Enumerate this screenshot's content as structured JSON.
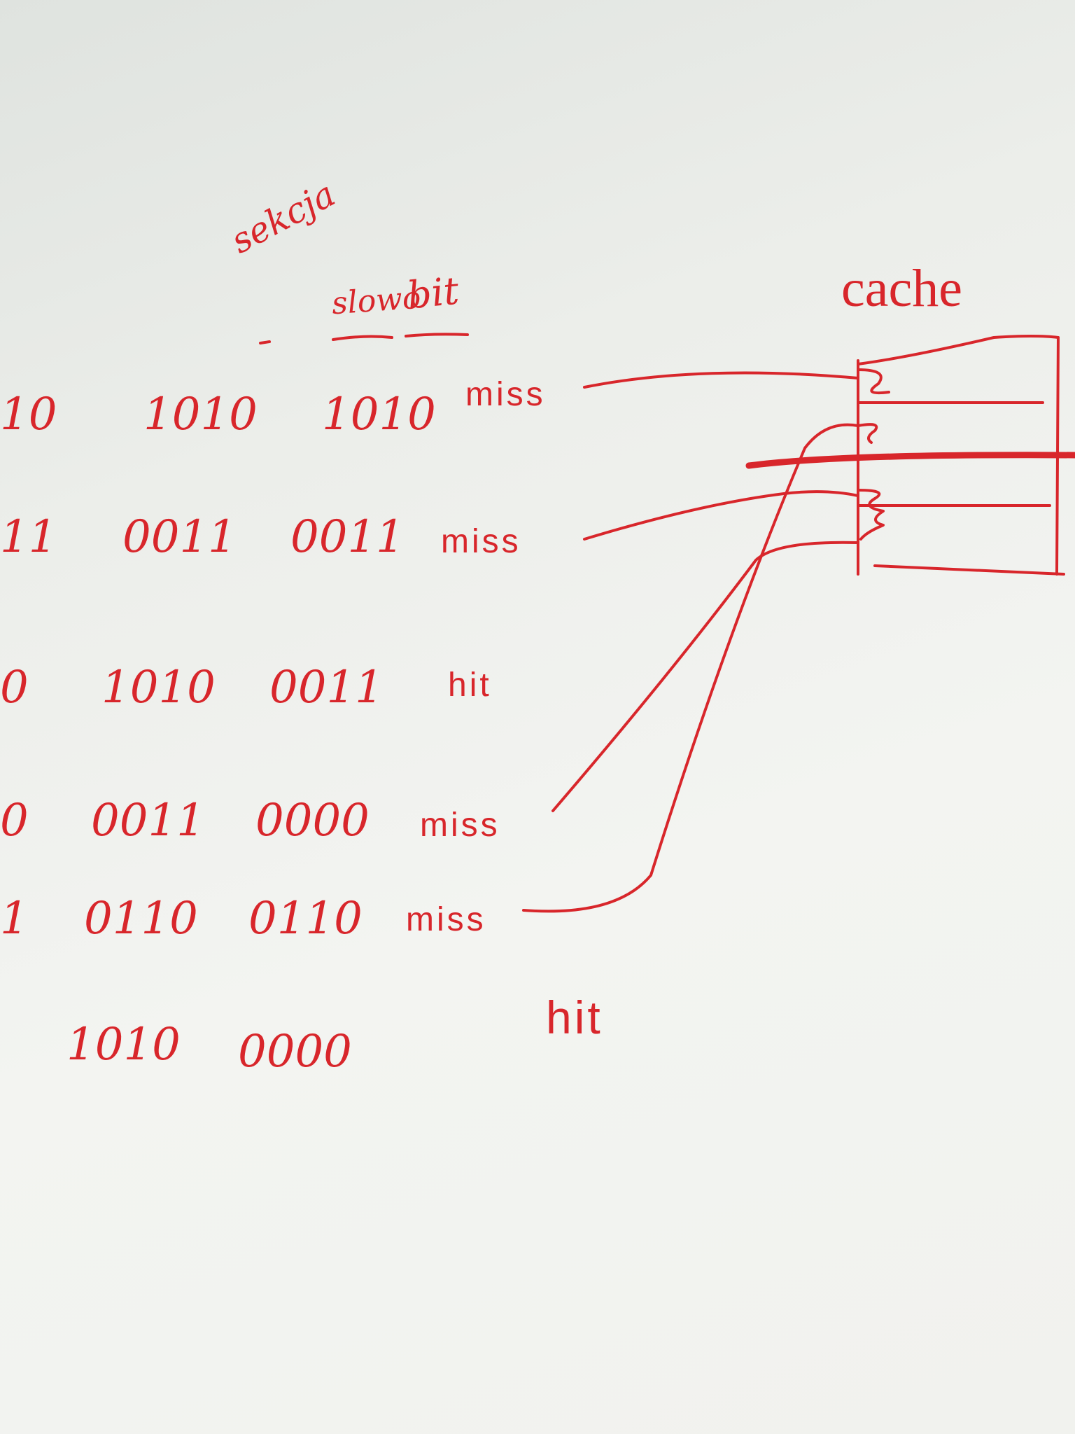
{
  "headers": {
    "section": "sekcja",
    "word": "slowo",
    "bit": "bit"
  },
  "cache_label": "cache",
  "rows": [
    {
      "cut": "10",
      "section": "1010",
      "word": "1010",
      "result": "miss"
    },
    {
      "cut": "11",
      "section": "0011",
      "word": "0011",
      "result": "miss"
    },
    {
      "cut": "0",
      "section": "1010",
      "word": "0011",
      "result": "hit"
    },
    {
      "cut": "0",
      "section": "0011",
      "word": "0000",
      "result": "miss"
    },
    {
      "cut": "1",
      "section": "0110",
      "word": "0110",
      "result": "miss"
    },
    {
      "cut": "",
      "section": "1010",
      "word": "0000",
      "result": "hit"
    }
  ],
  "colors": {
    "ink": "#d8262b",
    "board": "#eff0ec"
  }
}
